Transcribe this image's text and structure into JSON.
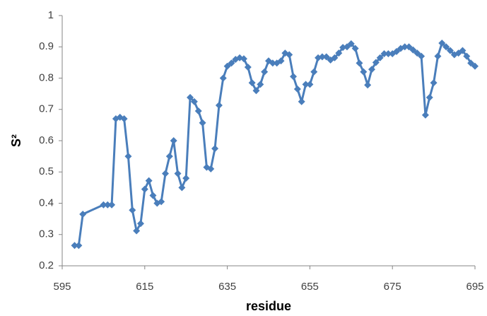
{
  "chart_data": {
    "type": "line",
    "x_label": "residue",
    "y_label": "S²",
    "x": [
      598,
      599,
      600,
      605,
      606,
      607,
      608,
      609,
      610,
      611,
      612,
      613,
      614,
      615,
      616,
      617,
      618,
      619,
      620,
      621,
      622,
      623,
      624,
      625,
      626,
      627,
      628,
      629,
      630,
      631,
      632,
      633,
      634,
      635,
      636,
      637,
      638,
      639,
      640,
      641,
      642,
      643,
      644,
      645,
      646,
      647,
      648,
      649,
      650,
      651,
      652,
      653,
      654,
      655,
      656,
      657,
      658,
      659,
      660,
      661,
      662,
      663,
      664,
      665,
      666,
      667,
      668,
      669,
      670,
      671,
      672,
      673,
      674,
      675,
      676,
      677,
      678,
      679,
      680,
      681,
      682,
      683,
      684,
      685,
      686,
      687,
      688,
      689,
      690,
      691,
      692,
      693,
      694,
      695
    ],
    "series": [
      {
        "color": "#4a7ebb",
        "values": [
          0.265,
          0.265,
          0.365,
          0.395,
          0.395,
          0.395,
          0.67,
          0.675,
          0.67,
          0.55,
          0.378,
          0.312,
          0.335,
          0.445,
          0.472,
          0.425,
          0.4,
          0.405,
          0.495,
          0.55,
          0.6,
          0.495,
          0.45,
          0.48,
          0.738,
          0.725,
          0.695,
          0.657,
          0.515,
          0.51,
          0.575,
          0.713,
          0.8,
          0.838,
          0.848,
          0.86,
          0.865,
          0.862,
          0.835,
          0.785,
          0.76,
          0.78,
          0.82,
          0.855,
          0.848,
          0.848,
          0.855,
          0.88,
          0.875,
          0.805,
          0.765,
          0.725,
          0.78,
          0.78,
          0.82,
          0.865,
          0.868,
          0.868,
          0.858,
          0.865,
          0.88,
          0.898,
          0.9,
          0.91,
          0.895,
          0.848,
          0.82,
          0.778,
          0.828,
          0.85,
          0.865,
          0.878,
          0.878,
          0.878,
          0.885,
          0.895,
          0.9,
          0.9,
          0.89,
          0.88,
          0.87,
          0.682,
          0.738,
          0.785,
          0.87,
          0.912,
          0.9,
          0.888,
          0.875,
          0.88,
          0.888,
          0.87,
          0.848,
          0.838
        ]
      }
    ],
    "xlim": [
      595,
      695
    ],
    "xticks": [
      595,
      615,
      635,
      655,
      675,
      695
    ],
    "ylim": [
      0.2,
      1
    ],
    "yticks": [
      0.2,
      0.3,
      0.4,
      0.5,
      0.6,
      0.7,
      0.8,
      0.9,
      1
    ],
    "grid": false
  }
}
